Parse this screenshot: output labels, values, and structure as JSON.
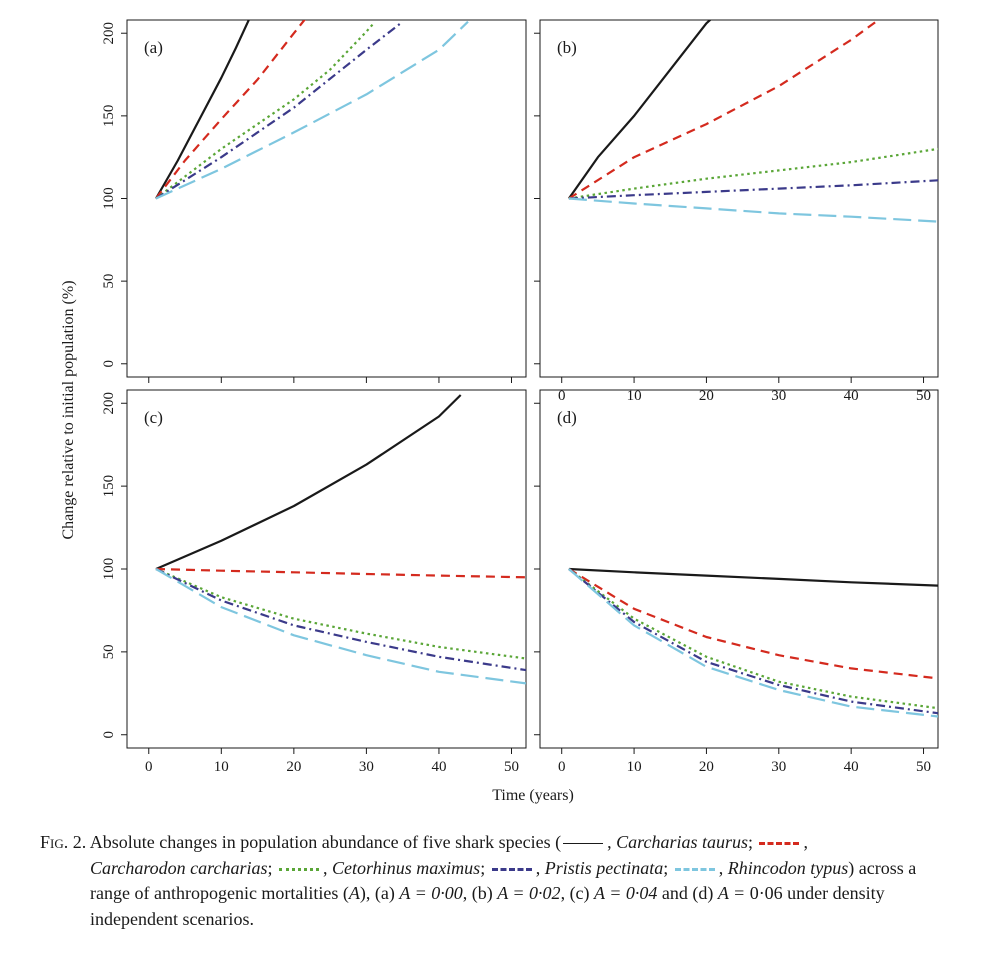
{
  "colors": {
    "Carcharias taurus": "#1a1a1a",
    "Carcharodon carcharias": "#d42a1e",
    "Cetorhinus maximus": "#5aa637",
    "Pristis pectinata": "#3b3a8a",
    "Rhincodon typus": "#7ec6df"
  },
  "chart_data": [
    {
      "type": "line",
      "panel_label": "(a)",
      "xlim": [
        -3,
        52
      ],
      "ylim": [
        -8,
        208
      ],
      "x_ticks": [
        0,
        10,
        20,
        30,
        40,
        50
      ],
      "y_ticks": [
        0,
        50,
        100,
        150,
        200
      ],
      "show_x_tick_labels": false,
      "show_y_tick_labels": true,
      "series": [
        {
          "name": "Carcharias taurus",
          "dash": "solid",
          "x": [
            1,
            4,
            7,
            10,
            12,
            14
          ],
          "y": [
            100,
            123,
            148,
            173,
            191,
            210
          ]
        },
        {
          "name": "Carcharodon carcharias",
          "dash": "dashed",
          "x": [
            1,
            5,
            10,
            15,
            20,
            22
          ],
          "y": [
            100,
            123,
            148,
            172,
            200,
            211
          ]
        },
        {
          "name": "Cetorhinus maximus",
          "dash": "dotted",
          "x": [
            1,
            10,
            20,
            25,
            30,
            31
          ],
          "y": [
            100,
            130,
            160,
            178,
            201,
            206
          ]
        },
        {
          "name": "Pristis pectinata",
          "dash": "dashdot",
          "x": [
            1,
            10,
            20,
            30,
            35
          ],
          "y": [
            100,
            125,
            155,
            190,
            207
          ]
        },
        {
          "name": "Rhincodon typus",
          "dash": "longdash",
          "x": [
            1,
            10,
            20,
            30,
            40,
            44
          ],
          "y": [
            100,
            118,
            140,
            163,
            190,
            207
          ]
        }
      ]
    },
    {
      "type": "line",
      "panel_label": "(b)",
      "xlim": [
        -3,
        52
      ],
      "ylim": [
        -8,
        208
      ],
      "x_ticks": [
        0,
        10,
        20,
        30,
        40,
        50
      ],
      "y_ticks": [
        0,
        50,
        100,
        150,
        200
      ],
      "show_x_tick_labels": true,
      "show_y_tick_labels": false,
      "series": [
        {
          "name": "Carcharias taurus",
          "dash": "solid",
          "x": [
            1,
            5,
            10,
            15,
            20,
            21
          ],
          "y": [
            100,
            125,
            150,
            178,
            206,
            210
          ]
        },
        {
          "name": "Carcharodon carcharias",
          "dash": "dashed",
          "x": [
            1,
            10,
            20,
            30,
            40,
            45
          ],
          "y": [
            100,
            125,
            145,
            168,
            196,
            212
          ]
        },
        {
          "name": "Cetorhinus maximus",
          "dash": "dotted",
          "x": [
            1,
            10,
            20,
            30,
            40,
            52
          ],
          "y": [
            100,
            106,
            112,
            117,
            122,
            130
          ]
        },
        {
          "name": "Pristis pectinata",
          "dash": "dashdot",
          "x": [
            1,
            10,
            20,
            30,
            40,
            52
          ],
          "y": [
            100,
            102,
            104,
            106,
            108,
            111
          ]
        },
        {
          "name": "Rhincodon typus",
          "dash": "longdash",
          "x": [
            1,
            10,
            20,
            30,
            40,
            52
          ],
          "y": [
            100,
            97,
            94,
            91,
            89,
            86
          ]
        }
      ]
    },
    {
      "type": "line",
      "panel_label": "(c)",
      "xlim": [
        -3,
        52
      ],
      "ylim": [
        -8,
        208
      ],
      "x_ticks": [
        0,
        10,
        20,
        30,
        40,
        50
      ],
      "y_ticks": [
        0,
        50,
        100,
        150,
        200
      ],
      "show_x_tick_labels": true,
      "show_y_tick_labels": true,
      "series": [
        {
          "name": "Carcharias taurus",
          "dash": "solid",
          "x": [
            1,
            10,
            20,
            30,
            40,
            43
          ],
          "y": [
            100,
            117,
            138,
            163,
            192,
            205
          ]
        },
        {
          "name": "Carcharodon carcharias",
          "dash": "dashed",
          "x": [
            1,
            10,
            20,
            30,
            40,
            52
          ],
          "y": [
            100,
            99,
            98,
            97,
            96,
            95
          ]
        },
        {
          "name": "Cetorhinus maximus",
          "dash": "dotted",
          "x": [
            1,
            10,
            20,
            30,
            40,
            52
          ],
          "y": [
            100,
            83,
            70,
            61,
            53,
            46
          ]
        },
        {
          "name": "Pristis pectinata",
          "dash": "dashdot",
          "x": [
            1,
            10,
            20,
            30,
            40,
            52
          ],
          "y": [
            100,
            81,
            66,
            56,
            47,
            39
          ]
        },
        {
          "name": "Rhincodon typus",
          "dash": "longdash",
          "x": [
            1,
            10,
            20,
            30,
            40,
            52
          ],
          "y": [
            100,
            77,
            60,
            48,
            38,
            31
          ]
        }
      ]
    },
    {
      "type": "line",
      "panel_label": "(d)",
      "xlim": [
        -3,
        52
      ],
      "ylim": [
        -8,
        208
      ],
      "x_ticks": [
        0,
        10,
        20,
        30,
        40,
        50
      ],
      "y_ticks": [
        0,
        50,
        100,
        150,
        200
      ],
      "show_x_tick_labels": true,
      "show_y_tick_labels": false,
      "series": [
        {
          "name": "Carcharias taurus",
          "dash": "solid",
          "x": [
            1,
            10,
            20,
            30,
            40,
            52
          ],
          "y": [
            100,
            98,
            96,
            94,
            92,
            90
          ]
        },
        {
          "name": "Carcharodon carcharias",
          "dash": "dashed",
          "x": [
            1,
            10,
            20,
            30,
            40,
            52
          ],
          "y": [
            100,
            76,
            59,
            48,
            40,
            34
          ]
        },
        {
          "name": "Cetorhinus maximus",
          "dash": "dotted",
          "x": [
            1,
            10,
            20,
            30,
            40,
            52
          ],
          "y": [
            100,
            70,
            47,
            32,
            23,
            16
          ]
        },
        {
          "name": "Pristis pectinata",
          "dash": "dashdot",
          "x": [
            1,
            10,
            20,
            30,
            40,
            52
          ],
          "y": [
            100,
            68,
            44,
            30,
            20,
            13
          ]
        },
        {
          "name": "Rhincodon typus",
          "dash": "longdash",
          "x": [
            1,
            10,
            20,
            30,
            40,
            52
          ],
          "y": [
            100,
            66,
            41,
            27,
            17,
            11
          ]
        }
      ]
    }
  ],
  "figure": {
    "xlabel": "Time (years)",
    "ylabel": "Change relative to initial population (%)"
  },
  "caption": {
    "fig_prefix": "Fig. 2.",
    "part1": "Absolute changes in population abundance of five shark species (",
    "sep1": ", ",
    "species1": "Carcharias taurus",
    "semi": "; ",
    "species2": "Carcharodon carcharias",
    "species3": "Cetorhinus maximus",
    "species4": "Pristis pectinata",
    "species5": "Rhincodon typus",
    "close": ")",
    "part2": "across a range of anthropogenic mortalities (",
    "A": "A",
    "part3": "), (a) ",
    "eqA": "A = 0·00",
    "part4": ", (b) ",
    "eqB": "A = 0·02",
    "part5": ", (c) ",
    "eqC": "A = 0·04",
    "part6": " and (d) ",
    "eqD": "A =",
    "part7": "0·06 under density independent scenarios."
  }
}
